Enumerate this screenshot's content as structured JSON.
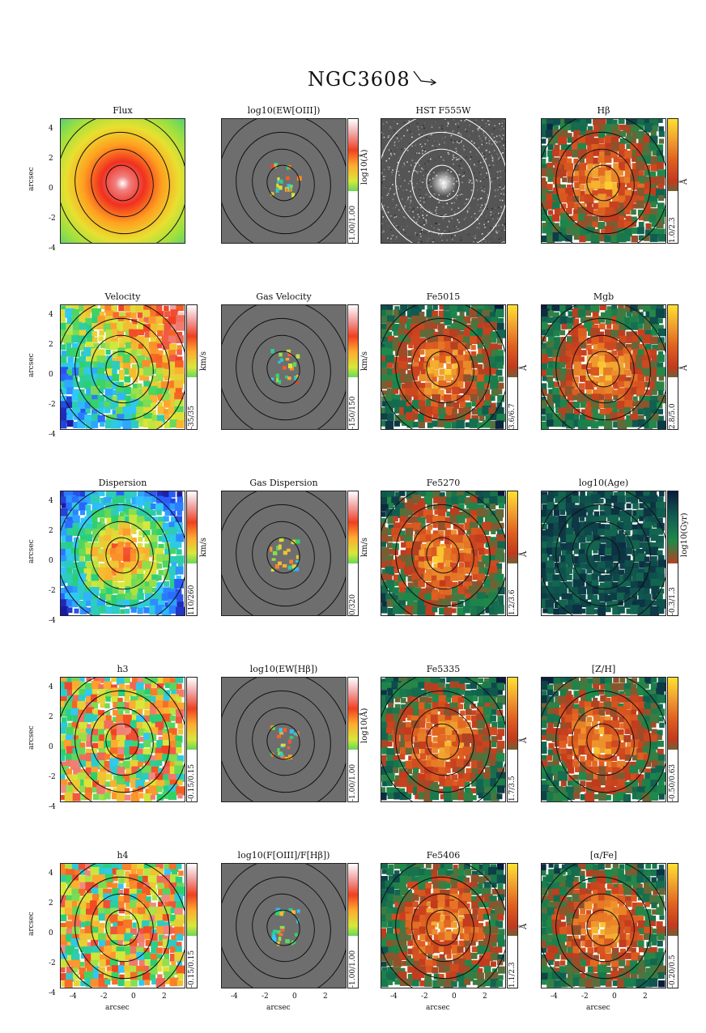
{
  "figure": {
    "title": "NGC3608",
    "axis_label": "arcsec",
    "y_ticks": [
      "4",
      "2",
      "0",
      "-2",
      "-4"
    ],
    "x_ticks": [
      "-4",
      "-2",
      "0",
      "2"
    ]
  },
  "colors": {
    "gas_bg": "#6e6e6e",
    "contour": "#111111",
    "hst_contour": "#ffffff"
  },
  "panels": [
    {
      "id": "flux",
      "title": "Flux",
      "type": "flux",
      "range": "",
      "unit": ""
    },
    {
      "id": "log-ew-oiii",
      "title": "log10(EW[OIII])",
      "type": "gas",
      "range": "-1.00/1.00",
      "unit": "log10(Å)"
    },
    {
      "id": "hst",
      "title": "HST F555W",
      "type": "hst",
      "range": "",
      "unit": ""
    },
    {
      "id": "hbeta",
      "title": "Hβ",
      "type": "stellar",
      "range": "1.0/2.3",
      "unit": "Å"
    },
    {
      "id": "velocity",
      "title": "Velocity",
      "type": "velocity",
      "range": "-35/35",
      "unit": "km/s"
    },
    {
      "id": "gas-velocity",
      "title": "Gas Velocity",
      "type": "gas",
      "range": "-150/150",
      "unit": "km/s"
    },
    {
      "id": "fe5015",
      "title": "Fe5015",
      "type": "stellar",
      "range": "3.6/6.7",
      "unit": "Å"
    },
    {
      "id": "mgb",
      "title": "Mgb",
      "type": "stellar",
      "range": "2.8/5.0",
      "unit": "Å"
    },
    {
      "id": "dispersion",
      "title": "Dispersion",
      "type": "dispersion",
      "range": "110/260",
      "unit": "km/s"
    },
    {
      "id": "gas-dispersion",
      "title": "Gas Dispersion",
      "type": "gas",
      "range": "0/320",
      "unit": "km/s"
    },
    {
      "id": "fe5270",
      "title": "Fe5270",
      "type": "stellar",
      "range": "1.2/3.6",
      "unit": "Å"
    },
    {
      "id": "log-age",
      "title": "log10(Age)",
      "type": "age",
      "range": "-0.3/1.3",
      "unit": "log10(Gyr)"
    },
    {
      "id": "h3",
      "title": "h3",
      "type": "h3",
      "range": "-0.15/0.15",
      "unit": ""
    },
    {
      "id": "log-ew-hb",
      "title": "log10(EW[Hβ])",
      "type": "gas",
      "range": "-1.00/1.00",
      "unit": "log10(Å)"
    },
    {
      "id": "fe5335",
      "title": "Fe5335",
      "type": "stellar",
      "range": "1.7/3.5",
      "unit": "Å"
    },
    {
      "id": "z-h",
      "title": "[Z/H]",
      "type": "stellar",
      "range": "-0.50/0.63",
      "unit": ""
    },
    {
      "id": "h4",
      "title": "h4",
      "type": "h4",
      "range": "-0.15/0.15",
      "unit": ""
    },
    {
      "id": "log-oiii-hb",
      "title": "log10(F[OIII]/F[Hβ])",
      "type": "gas",
      "range": "-1.00/1.00",
      "unit": ""
    },
    {
      "id": "fe5406",
      "title": "Fe5406",
      "type": "stellar",
      "range": "1.1/2.3",
      "unit": "Å"
    },
    {
      "id": "alpha-fe",
      "title": "[α/Fe]",
      "type": "stellar",
      "range": "-0.20/0.5",
      "unit": ""
    }
  ]
}
